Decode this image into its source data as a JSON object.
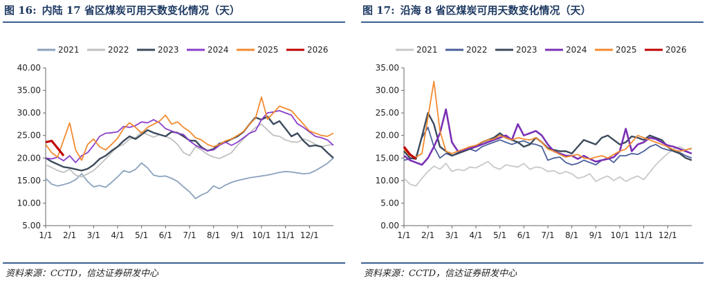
{
  "panels": [
    {
      "title_num": "图 16:",
      "title_text": "内陆 17 省区煤炭可用天数变化情况（天）",
      "source": "资料来源：CCTD，信达证券研发中心"
    },
    {
      "title_num": "图 17:",
      "title_text": "沿海 8 省区煤炭可用天数变化情况（天）",
      "source": "资料来源：CCTD，信达证券研发中心"
    }
  ],
  "colors": {
    "2021": "#8aa2bd",
    "2022": "#c0c0c0",
    "2023": "#3c4a5c",
    "2024_left": "#8a3fc9",
    "2024_right": "#7a2fb5",
    "2025": "#f28a2e",
    "2026": "#c00000",
    "2022_right": "#c8c8c8",
    "2023_right": "#4a5f9a"
  },
  "chart_data": [
    {
      "type": "line",
      "title": "内陆 17 省区煤炭可用天数变化情况（天）",
      "xlabel": "",
      "ylabel": "",
      "ylim": [
        5,
        40
      ],
      "yticks": [
        "5.00",
        "10.00",
        "15.00",
        "20.00",
        "25.00",
        "30.00",
        "35.00",
        "40.00"
      ],
      "xticks": [
        "1/1",
        "2/1",
        "3/1",
        "4/1",
        "5/1",
        "6/1",
        "7/1",
        "8/1",
        "9/1",
        "10/1",
        "11/1",
        "12/1"
      ],
      "legend": [
        "2021",
        "2022",
        "2023",
        "2024",
        "2025",
        "2026"
      ],
      "legend_position": "top",
      "x": [
        0,
        0.25,
        0.5,
        0.75,
        1,
        1.25,
        1.5,
        1.75,
        2,
        2.25,
        2.5,
        2.75,
        3,
        3.25,
        3.5,
        3.75,
        4,
        4.25,
        4.5,
        4.75,
        5,
        5.25,
        5.5,
        5.75,
        6,
        6.25,
        6.5,
        6.75,
        7,
        7.25,
        7.5,
        7.75,
        8,
        8.25,
        8.5,
        8.75,
        9,
        9.25,
        9.5,
        9.75,
        10,
        10.25,
        10.5,
        10.75,
        11,
        11.25,
        11.5,
        11.75,
        12
      ],
      "series": [
        {
          "name": "2021",
          "key": "2021",
          "values": [
            15.5,
            14.2,
            13.8,
            14.1,
            14.5,
            15.2,
            16.5,
            14.8,
            13.6,
            13.9,
            13.5,
            14.6,
            15.8,
            17.2,
            16.8,
            17.5,
            18.9,
            17.8,
            16.2,
            15.9,
            16.0,
            15.5,
            14.8,
            13.6,
            12.5,
            11.0,
            11.8,
            12.4,
            13.8,
            13.2,
            14.0,
            14.6,
            15.0,
            15.3,
            15.6,
            15.8,
            16.0,
            16.2,
            16.5,
            16.8,
            17.0,
            16.9,
            16.7,
            16.5,
            16.6,
            17.2,
            18.0,
            18.8,
            20.0
          ]
        },
        {
          "name": "2022",
          "key": "2022",
          "values": [
            18.5,
            17.9,
            17.2,
            16.8,
            17.5,
            16.2,
            15.8,
            16.5,
            17.2,
            18.5,
            19.8,
            21.2,
            22.5,
            23.0,
            24.2,
            24.5,
            25.8,
            25.2,
            24.6,
            25.2,
            24.8,
            24.2,
            23.0,
            21.2,
            20.5,
            22.5,
            21.8,
            20.8,
            20.2,
            19.9,
            20.5,
            21.2,
            22.8,
            24.2,
            25.5,
            26.8,
            27.5,
            26.2,
            25.0,
            24.8,
            24.0,
            23.6,
            23.5,
            24.2,
            23.8,
            23.0,
            22.5,
            22.8,
            23.0
          ]
        },
        {
          "name": "2023",
          "key": "2023",
          "values": [
            20.0,
            19.2,
            18.6,
            18.0,
            17.8,
            17.5,
            17.2,
            17.6,
            18.5,
            19.8,
            20.5,
            21.6,
            22.5,
            23.8,
            24.8,
            24.2,
            25.2,
            26.2,
            25.6,
            25.2,
            24.8,
            25.8,
            25.6,
            24.8,
            23.9,
            23.8,
            22.4,
            21.6,
            22.0,
            23.2,
            23.5,
            24.2,
            24.8,
            25.8,
            27.5,
            29.0,
            28.5,
            29.2,
            27.5,
            28.2,
            26.5,
            24.8,
            25.5,
            23.8,
            22.6,
            22.8,
            22.5,
            21.2,
            20.0
          ]
        },
        {
          "name": "2024",
          "key": "2024_left",
          "values": [
            20.0,
            19.8,
            20.2,
            19.4,
            20.5,
            19.0,
            20.5,
            21.2,
            22.8,
            24.8,
            25.5,
            25.6,
            25.8,
            27.0,
            26.8,
            27.2,
            28.0,
            27.8,
            28.5,
            27.8,
            26.5,
            26.0,
            25.5,
            25.2,
            23.8,
            22.8,
            22.2,
            21.6,
            21.8,
            22.8,
            23.5,
            22.8,
            23.5,
            24.5,
            25.5,
            26.0,
            28.5,
            30.0,
            30.2,
            30.5,
            30.0,
            29.5,
            27.6,
            26.8,
            25.8,
            24.8,
            24.5,
            24.0,
            22.8
          ]
        },
        {
          "name": "2025",
          "key": "2025",
          "values": [
            23.0,
            21.2,
            20.2,
            24.0,
            27.8,
            21.8,
            19.5,
            23.0,
            24.2,
            22.5,
            21.8,
            23.0,
            24.4,
            26.5,
            27.8,
            26.8,
            25.5,
            26.8,
            27.5,
            28.2,
            29.5,
            27.5,
            28.0,
            26.8,
            25.9,
            24.5,
            24.0,
            23.0,
            22.5,
            23.0,
            23.8,
            24.2,
            25.0,
            25.9,
            27.5,
            28.8,
            33.5,
            28.6,
            30.0,
            31.5,
            31.0,
            30.5,
            29.0,
            27.5,
            26.0,
            25.5,
            25.0,
            24.8,
            25.5
          ]
        },
        {
          "name": "2026",
          "key": "2026",
          "values": [
            23.5,
            23.8,
            22.2,
            20.5,
            null,
            null,
            null,
            null,
            null,
            null,
            null,
            null,
            null,
            null,
            null,
            null,
            null,
            null,
            null,
            null,
            null,
            null,
            null,
            null,
            null,
            null,
            null,
            null,
            null,
            null,
            null,
            null,
            null,
            null,
            null,
            null,
            null,
            null,
            null,
            null,
            null,
            null,
            null,
            null,
            null,
            null,
            null,
            null,
            null
          ]
        }
      ]
    },
    {
      "type": "line",
      "title": "沿海 8 省区煤炭可用天数变化情况（天）",
      "xlabel": "",
      "ylabel": "",
      "ylim": [
        0,
        35
      ],
      "yticks": [
        "0.00",
        "5.00",
        "10.00",
        "15.00",
        "20.00",
        "25.00",
        "30.00",
        "35.00"
      ],
      "xticks": [
        "1/1",
        "2/1",
        "3/1",
        "4/1",
        "5/1",
        "6/1",
        "7/1",
        "8/1",
        "9/1",
        "10/1",
        "11/1",
        "12/1"
      ],
      "legend": [
        "2021",
        "2022",
        "2023",
        "2024",
        "2025",
        "2026"
      ],
      "legend_position": "top",
      "x": [
        0,
        0.25,
        0.5,
        0.75,
        1,
        1.25,
        1.5,
        1.75,
        2,
        2.25,
        2.5,
        2.75,
        3,
        3.25,
        3.5,
        3.75,
        4,
        4.25,
        4.5,
        4.75,
        5,
        5.25,
        5.5,
        5.75,
        6,
        6.25,
        6.5,
        6.75,
        7,
        7.25,
        7.5,
        7.75,
        8,
        8.25,
        8.5,
        8.75,
        9,
        9.25,
        9.5,
        9.75,
        10,
        10.25,
        10.5,
        10.75,
        11,
        11.25,
        11.5,
        11.75,
        12
      ],
      "series": [
        {
          "name": "2021",
          "key": "2021_right",
          "values": [
            10.5,
            9.2,
            8.8,
            10.5,
            12.0,
            13.2,
            12.5,
            13.8,
            12.0,
            12.5,
            12.2,
            13.0,
            12.8,
            13.5,
            14.2,
            13.0,
            12.5,
            13.5,
            13.2,
            13.0,
            13.8,
            12.5,
            13.0,
            12.8,
            12.0,
            12.2,
            11.5,
            12.0,
            11.5,
            10.5,
            10.8,
            11.5,
            9.8,
            10.5,
            11.0,
            10.0,
            10.8,
            9.8,
            10.5,
            11.0,
            10.2,
            11.8,
            13.5,
            14.8,
            16.0,
            17.0,
            17.5,
            16.8,
            17.0
          ]
        },
        {
          "name": "2022",
          "key": "2022_right",
          "values": [
            14.5,
            14.8,
            15.2,
            19.5,
            21.8,
            17.5,
            15.0,
            16.0,
            15.5,
            16.2,
            16.5,
            17.0,
            16.5,
            17.5,
            18.0,
            18.5,
            19.0,
            18.5,
            18.0,
            18.5,
            18.8,
            18.2,
            18.0,
            17.5,
            14.5,
            15.0,
            15.2,
            14.0,
            13.5,
            13.8,
            14.5,
            14.0,
            13.5,
            14.5,
            15.0,
            14.0,
            15.5,
            15.5,
            16.0,
            15.8,
            16.5,
            17.5,
            18.0,
            17.2,
            16.8,
            16.5,
            16.2,
            15.5,
            15.0
          ]
        },
        {
          "name": "2023",
          "key": "2023_right",
          "values": [
            16.5,
            15.0,
            14.8,
            19.8,
            25.0,
            22.5,
            17.5,
            16.5,
            15.5,
            16.0,
            16.5,
            17.0,
            17.5,
            18.5,
            19.0,
            19.5,
            20.5,
            19.5,
            19.0,
            18.5,
            17.5,
            18.0,
            19.5,
            18.5,
            17.2,
            16.8,
            16.5,
            16.5,
            16.0,
            17.5,
            19.0,
            18.5,
            18.0,
            19.5,
            20.0,
            19.0,
            18.0,
            18.5,
            19.8,
            19.5,
            19.0,
            20.0,
            19.5,
            19.0,
            17.5,
            16.5,
            16.0,
            15.0,
            14.5
          ]
        },
        {
          "name": "2024",
          "key": "2024_right",
          "values": [
            15.5,
            14.5,
            14.0,
            13.5,
            15.0,
            17.5,
            20.5,
            25.8,
            18.5,
            16.5,
            16.8,
            17.2,
            17.5,
            18.0,
            18.5,
            19.0,
            19.5,
            20.0,
            19.0,
            22.5,
            20.0,
            20.5,
            21.0,
            20.0,
            18.0,
            16.5,
            16.0,
            15.5,
            15.5,
            14.8,
            15.5,
            14.8,
            14.2,
            14.5,
            14.8,
            15.2,
            16.5,
            21.5,
            16.5,
            18.0,
            18.5,
            19.5,
            19.2,
            18.5,
            17.8,
            17.5,
            17.0,
            16.5,
            16.0
          ]
        },
        {
          "name": "2025",
          "key": "2025_right",
          "values": [
            17.0,
            15.5,
            15.2,
            16.0,
            24.0,
            32.0,
            21.0,
            16.5,
            16.0,
            16.5,
            17.0,
            17.5,
            17.8,
            18.5,
            19.0,
            19.2,
            20.0,
            19.5,
            19.0,
            19.5,
            19.2,
            19.0,
            19.5,
            18.5,
            17.0,
            16.5,
            15.8,
            15.2,
            15.5,
            15.8,
            15.0,
            14.8,
            15.2,
            15.5,
            15.0,
            15.8,
            16.5,
            17.0,
            18.5,
            20.0,
            19.5,
            19.0,
            18.5,
            18.0,
            17.5,
            16.8,
            16.5,
            16.8,
            17.2
          ]
        },
        {
          "name": "2026",
          "key": "2026",
          "values": [
            17.5,
            15.8,
            14.8,
            null,
            null,
            null,
            null,
            null,
            null,
            null,
            null,
            null,
            null,
            null,
            null,
            null,
            null,
            null,
            null,
            null,
            null,
            null,
            null,
            null,
            null,
            null,
            null,
            null,
            null,
            null,
            null,
            null,
            null,
            null,
            null,
            null,
            null,
            null,
            null,
            null,
            null,
            null,
            null,
            null,
            null,
            null,
            null,
            null,
            null
          ]
        }
      ]
    }
  ]
}
